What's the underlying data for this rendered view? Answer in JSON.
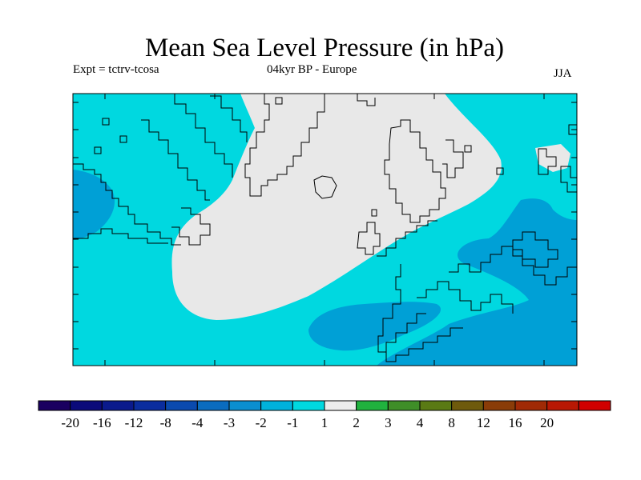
{
  "title": "Mean Sea Level Pressure (in hPa)",
  "subtitle_left": "Expt = tctrv-tcosa",
  "subtitle_center": "04kyr BP - Europe",
  "season": "JJA",
  "colorbar": {
    "labels": [
      "-20",
      "-16",
      "-12",
      "-8",
      "-4",
      "-3",
      "-2",
      "-1",
      "1",
      "2",
      "3",
      "4",
      "8",
      "12",
      "16",
      "20"
    ],
    "colors": [
      "#1a0060",
      "#0b0a7a",
      "#0a1a8c",
      "#0a2d9e",
      "#0a4aae",
      "#0a6cbf",
      "#0a8fcf",
      "#00b2dc",
      "#00d8e0",
      "#ececec",
      "#20b23e",
      "#3f8e28",
      "#5a7a14",
      "#6e5a0c",
      "#8a3c08",
      "#a02a06",
      "#b81804",
      "#d00000"
    ]
  },
  "map_colors": {
    "background": "#00d8e0",
    "light": "#e8e8e8",
    "medium": "#00a0d6",
    "coast": "#000000"
  }
}
